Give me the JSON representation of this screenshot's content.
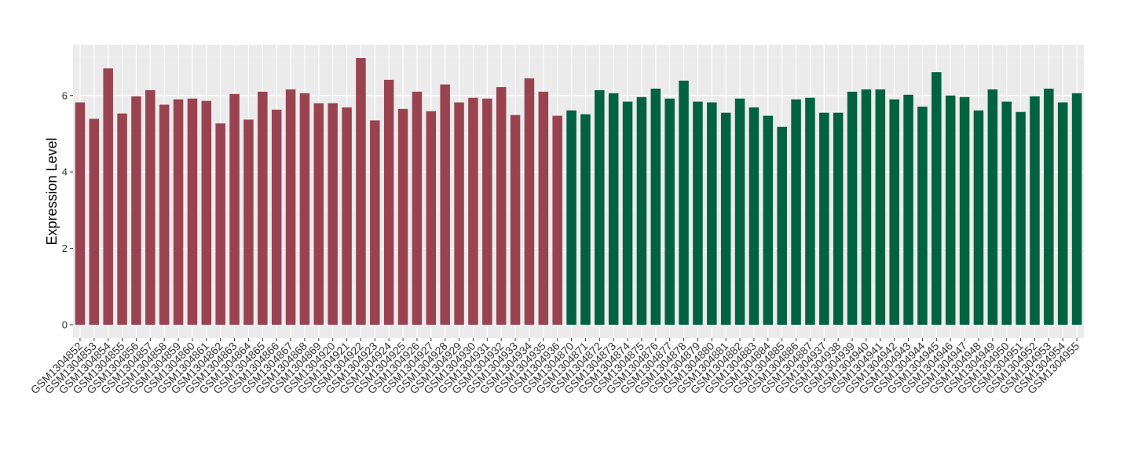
{
  "chart_data": {
    "type": "bar",
    "ylabel": "Expression Level",
    "categories": [
      "GSM1304852",
      "GSM1304853",
      "GSM1304854",
      "GSM1304855",
      "GSM1304856",
      "GSM1304857",
      "GSM1304858",
      "GSM1304859",
      "GSM1304860",
      "GSM1304861",
      "GSM1304862",
      "GSM1304863",
      "GSM1304864",
      "GSM1304865",
      "GSM1304866",
      "GSM1304867",
      "GSM1304868",
      "GSM1304869",
      "GSM1304920",
      "GSM1304921",
      "GSM1304922",
      "GSM1304923",
      "GSM1304924",
      "GSM1304925",
      "GSM1304926",
      "GSM1304927",
      "GSM1304928",
      "GSM1304929",
      "GSM1304930",
      "GSM1304931",
      "GSM1304932",
      "GSM1304933",
      "GSM1304934",
      "GSM1304935",
      "GSM1304936",
      "GSM1304870",
      "GSM1304871",
      "GSM1304872",
      "GSM1304873",
      "GSM1304874",
      "GSM1304875",
      "GSM1304876",
      "GSM1304877",
      "GSM1304878",
      "GSM1304879",
      "GSM1304880",
      "GSM1304881",
      "GSM1304882",
      "GSM1304883",
      "GSM1304884",
      "GSM1304885",
      "GSM1304886",
      "GSM1304887",
      "GSM1304937",
      "GSM1304938",
      "GSM1304939",
      "GSM1304940",
      "GSM1304941",
      "GSM1304942",
      "GSM1304943",
      "GSM1304944",
      "GSM1304945",
      "GSM1304946",
      "GSM1304947",
      "GSM1304948",
      "GSM1304949",
      "GSM1304950",
      "GSM1304951",
      "GSM1304952",
      "GSM1304953",
      "GSM1304954",
      "GSM1304955"
    ],
    "values": [
      5.82,
      5.39,
      6.71,
      5.53,
      5.98,
      6.14,
      5.76,
      5.9,
      5.92,
      5.86,
      5.27,
      6.04,
      5.37,
      6.1,
      5.63,
      6.16,
      6.06,
      5.8,
      5.8,
      5.69,
      6.98,
      5.35,
      6.41,
      5.65,
      6.1,
      5.59,
      6.29,
      5.82,
      5.94,
      5.92,
      6.22,
      5.49,
      6.45,
      6.1,
      5.47,
      5.61,
      5.51,
      6.14,
      6.06,
      5.84,
      5.96,
      6.18,
      5.92,
      6.39,
      5.84,
      5.82,
      5.55,
      5.92,
      5.69,
      5.47,
      5.18,
      5.9,
      5.94,
      5.55,
      5.55,
      6.1,
      6.16,
      6.16,
      5.9,
      6.02,
      5.71,
      6.61,
      6.0,
      5.96,
      5.61,
      6.16,
      5.84,
      5.57,
      5.98,
      6.18,
      5.82,
      6.06
    ],
    "colors": [
      "#9a4350",
      "#9a4350",
      "#9a4350",
      "#9a4350",
      "#9a4350",
      "#9a4350",
      "#9a4350",
      "#9a4350",
      "#9a4350",
      "#9a4350",
      "#9a4350",
      "#9a4350",
      "#9a4350",
      "#9a4350",
      "#9a4350",
      "#9a4350",
      "#9a4350",
      "#9a4350",
      "#9a4350",
      "#9a4350",
      "#9a4350",
      "#9a4350",
      "#9a4350",
      "#9a4350",
      "#9a4350",
      "#9a4350",
      "#9a4350",
      "#9a4350",
      "#9a4350",
      "#9a4350",
      "#9a4350",
      "#9a4350",
      "#9a4350",
      "#9a4350",
      "#9a4350",
      "#006241",
      "#006241",
      "#006241",
      "#006241",
      "#006241",
      "#006241",
      "#006241",
      "#006241",
      "#006241",
      "#006241",
      "#006241",
      "#006241",
      "#006241",
      "#006241",
      "#006241",
      "#006241",
      "#006241",
      "#006241",
      "#006241",
      "#006241",
      "#006241",
      "#006241",
      "#006241",
      "#006241",
      "#006241",
      "#006241",
      "#006241",
      "#006241",
      "#006241",
      "#006241",
      "#006241",
      "#006241",
      "#006241",
      "#006241",
      "#006241",
      "#006241",
      "#006241"
    ],
    "ylim": [
      -0.35,
      7.33
    ],
    "yticks": [
      0,
      2,
      4,
      6
    ],
    "grid": true
  }
}
